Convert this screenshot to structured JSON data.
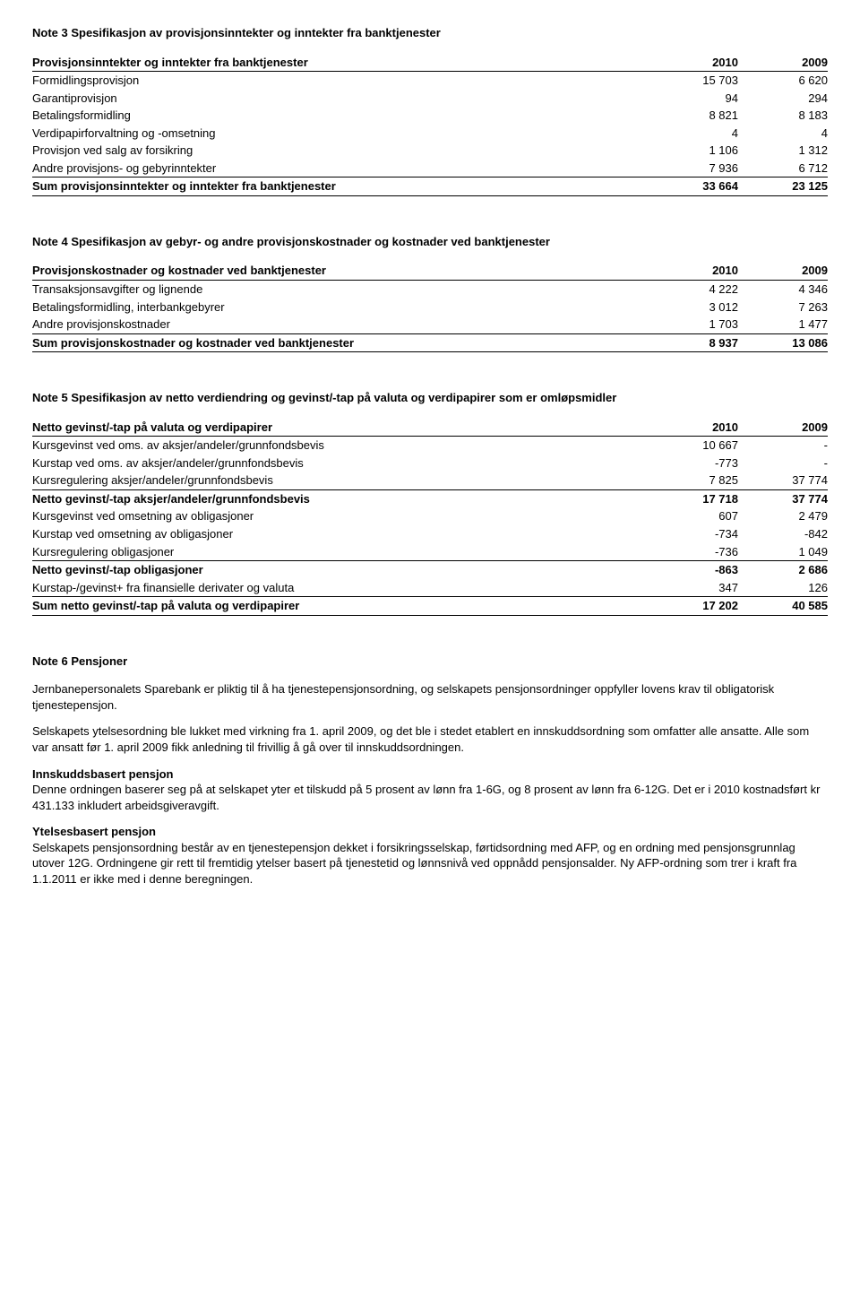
{
  "note3": {
    "title": "Note 3 Spesifikasjon av provisjonsinntekter og inntekter fra banktjenester",
    "table_header": "Provisjonsinntekter og inntekter fra banktjenester",
    "col_years": [
      "2010",
      "2009"
    ],
    "rows": [
      {
        "label": "Formidlingsprovisjon",
        "a": "15 703",
        "b": "6 620"
      },
      {
        "label": "Garantiprovisjon",
        "a": "94",
        "b": "294"
      },
      {
        "label": "Betalingsformidling",
        "a": "8 821",
        "b": "8 183"
      },
      {
        "label": "Verdipapirforvaltning og -omsetning",
        "a": "4",
        "b": "4"
      },
      {
        "label": "Provisjon ved salg av forsikring",
        "a": "1 106",
        "b": "1 312"
      },
      {
        "label": "Andre provisjons- og gebyrinntekter",
        "a": "7 936",
        "b": "6 712"
      }
    ],
    "sum": {
      "label": "Sum provisjonsinntekter og inntekter fra banktjenester",
      "a": "33 664",
      "b": "23 125"
    }
  },
  "note4": {
    "title": "Note 4 Spesifikasjon av gebyr- og andre provisjonskostnader og kostnader ved banktjenester",
    "table_header": "Provisjonskostnader og kostnader ved banktjenester",
    "col_years": [
      "2010",
      "2009"
    ],
    "rows": [
      {
        "label": "Transaksjonsavgifter og lignende",
        "a": "4 222",
        "b": "4 346"
      },
      {
        "label": "Betalingsformidling, interbankgebyrer",
        "a": "3 012",
        "b": "7 263"
      },
      {
        "label": "Andre provisjonskostnader",
        "a": "1 703",
        "b": "1 477"
      }
    ],
    "sum": {
      "label": "Sum provisjonskostnader og kostnader ved banktjenester",
      "a": "8 937",
      "b": "13 086"
    }
  },
  "note5": {
    "title": "Note 5 Spesifikasjon av netto verdiendring og gevinst/-tap på valuta og verdipapirer som er omløpsmidler",
    "table_header": "Netto gevinst/-tap på valuta og verdipapirer",
    "col_years": [
      "2010",
      "2009"
    ],
    "rows_a": [
      {
        "label": "Kursgevinst ved oms. av aksjer/andeler/grunnfondsbevis",
        "a": "10 667",
        "b": "-"
      },
      {
        "label": "Kurstap ved oms. av aksjer/andeler/grunnfondsbevis",
        "a": "-773",
        "b": "-"
      },
      {
        "label": "Kursregulering aksjer/andeler/grunnfondsbevis",
        "a": "7 825",
        "b": "37 774"
      }
    ],
    "sub_a": {
      "label": "Netto gevinst/-tap  aksjer/andeler/grunnfondsbevis",
      "a": "17 718",
      "b": "37 774"
    },
    "rows_b": [
      {
        "label": "Kursgevinst ved omsetning av obligasjoner",
        "a": "607",
        "b": "2 479"
      },
      {
        "label": "Kurstap ved omsetning av obligasjoner",
        "a": "-734",
        "b": "-842"
      },
      {
        "label": "Kursregulering obligasjoner",
        "a": "-736",
        "b": "1 049"
      }
    ],
    "sub_b": {
      "label": "Netto gevinst/-tap obligasjoner",
      "a": "-863",
      "b": "2 686"
    },
    "rows_c": [
      {
        "label": "Kurstap-/gevinst+ fra finansielle derivater og valuta",
        "a": "347",
        "b": "126"
      }
    ],
    "sum": {
      "label": "Sum netto gevinst/-tap på valuta og verdipapirer",
      "a": "17 202",
      "b": "40 585"
    }
  },
  "note6": {
    "title": "Note 6 Pensjoner",
    "p1": "Jernbanepersonalets Sparebank er pliktig til å ha tjenestepensjonsordning, og selskapets pensjonsordninger oppfyller lovens krav til obligatorisk tjenestepensjon.",
    "p2": "Selskapets ytelsesordning ble lukket med virkning fra 1. april 2009, og det ble i stedet etablert en innskuddsordning som omfatter alle ansatte. Alle som var ansatt før 1. april 2009 fikk anledning til frivillig å gå over til innskuddsordningen.",
    "sub1_title": "Innskuddsbasert pensjon",
    "sub1_text": "Denne ordningen baserer seg på at selskapet yter et tilskudd på 5 prosent av lønn fra 1-6G, og 8 prosent av lønn fra 6-12G. Det er i 2010 kostnadsført kr 431.133 inkludert arbeidsgiveravgift.",
    "sub2_title": "Ytelsesbasert pensjon",
    "sub2_text": "Selskapets pensjonsordning består av en tjenestepensjon dekket i forsikringsselskap, førtidsordning med AFP, og en ordning med pensjonsgrunnlag utover 12G. Ordningene gir rett til fremtidig ytelser basert på tjenestetid og lønnsnivå ved oppnådd pensjonsalder. Ny AFP-ordning som trer i kraft fra 1.1.2011 er ikke med i denne beregningen."
  }
}
